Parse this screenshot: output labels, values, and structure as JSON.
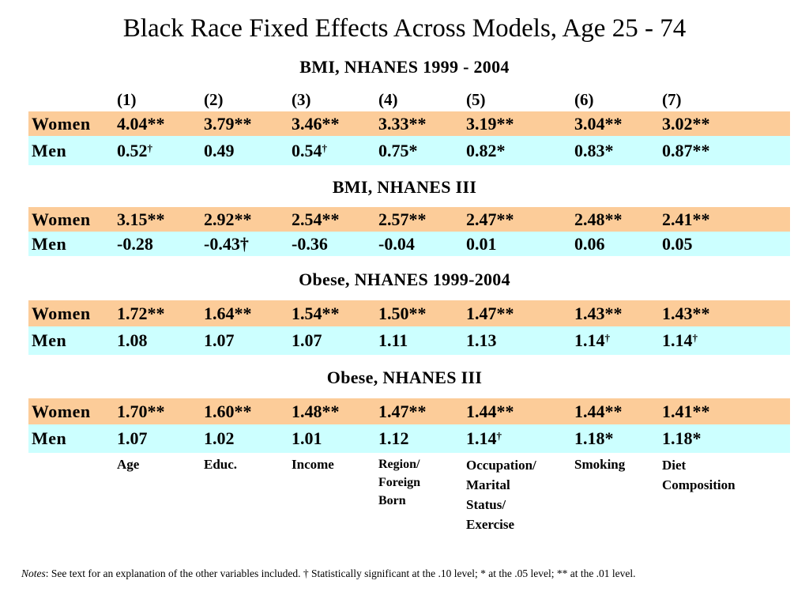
{
  "title": "Black Race Fixed Effects Across Models, Age 25 - 74",
  "columns": [
    "(1)",
    "(2)",
    "(3)",
    "(4)",
    "(5)",
    "(6)",
    "(7)"
  ],
  "sections": [
    {
      "title": "BMI, NHANES 1999 - 2004",
      "women": {
        "label": "Women",
        "values": [
          "4.04**",
          "3.79**",
          "3.46**",
          "3.33**",
          "3.19**",
          "3.04**",
          "3.02**"
        ]
      },
      "men": {
        "label": "Men",
        "values": [
          "0.52",
          "0.49",
          "0.54",
          "0.75*",
          "0.82*",
          "0.83*",
          "0.87**"
        ]
      }
    },
    {
      "title": "BMI, NHANES III",
      "women": {
        "label": "Women",
        "values": [
          "3.15**",
          "2.92**",
          "2.54**",
          "2.57**",
          "2.47**",
          "2.48**",
          "2.41**"
        ]
      },
      "men": {
        "label": "Men",
        "values": [
          "-0.28",
          "-0.43†",
          "-0.36",
          "-0.04",
          "0.01",
          "0.06",
          "0.05"
        ]
      }
    },
    {
      "title": "Obese, NHANES 1999-2004",
      "women": {
        "label": "Women",
        "values": [
          "1.72**",
          "1.64**",
          "1.54**",
          "1.50**",
          "1.47**",
          "1.43**",
          "1.43**"
        ]
      },
      "men": {
        "label": "Men",
        "values": [
          "1.08",
          "1.07",
          "1.07",
          "1.11",
          "1.13",
          "1.14",
          "1.14"
        ]
      }
    },
    {
      "title": "Obese, NHANES III",
      "women": {
        "label": "Women",
        "values": [
          "1.70**",
          "1.60**",
          "1.48**",
          "1.47**",
          "1.44**",
          "1.44**",
          "1.41**"
        ]
      },
      "men": {
        "label": "Men",
        "values": [
          "1.07",
          "1.02",
          "1.01",
          "1.12",
          "1.14",
          "1.18*",
          "1.18*"
        ]
      }
    }
  ],
  "dagger": "†",
  "controls": [
    [
      "Age"
    ],
    [
      "Educ."
    ],
    [
      "Income"
    ],
    [
      "Region/",
      "Foreign",
      "Born"
    ],
    [
      "Occupation/",
      "Marital",
      "Status/",
      "Exercise"
    ],
    [
      "Smoking"
    ],
    [
      "Diet",
      "Composition"
    ]
  ],
  "notes": {
    "label": "Notes",
    "text": ": See text for an explanation of the other variables included. † Statistically significant at the .10 level; * at the .05 level; ** at the .01 level."
  }
}
